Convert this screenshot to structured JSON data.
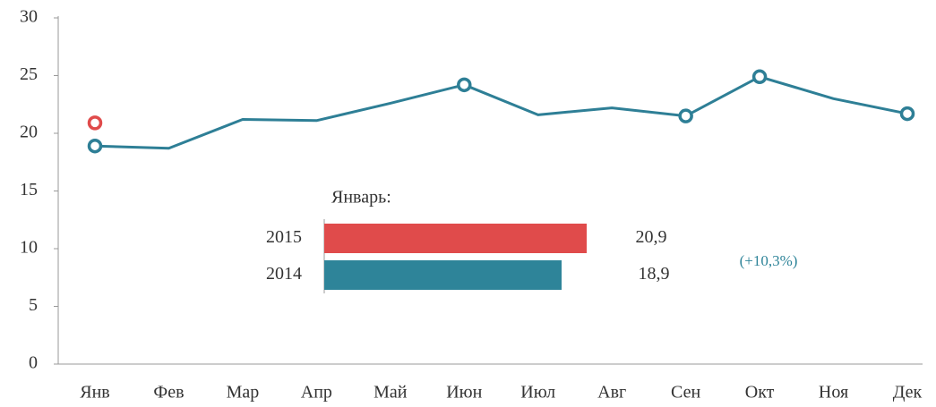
{
  "chart_data": [
    {
      "type": "line",
      "categories": [
        "Янв",
        "Фев",
        "Мар",
        "Апр",
        "Май",
        "Июн",
        "Июл",
        "Авг",
        "Сен",
        "Окт",
        "Ноя",
        "Дек"
      ],
      "series": [
        {
          "name": "2014",
          "color": "#2e7f96",
          "values": [
            18.9,
            18.7,
            21.2,
            21.1,
            22.6,
            24.2,
            21.6,
            22.2,
            21.5,
            24.9,
            23.0,
            21.7
          ],
          "markers": [
            0,
            5,
            8,
            9,
            11
          ]
        },
        {
          "name": "2015",
          "color": "#e04b4b",
          "values": [
            20.9,
            null,
            null,
            null,
            null,
            null,
            null,
            null,
            null,
            null,
            null,
            null
          ],
          "markers": [
            0
          ]
        }
      ],
      "ylim": [
        0,
        30
      ],
      "yticks": [
        0,
        5,
        10,
        15,
        20,
        25,
        30
      ],
      "grid": false
    },
    {
      "type": "hbar",
      "title": "Январь:",
      "categories": [
        "2015",
        "2014"
      ],
      "values": [
        20.9,
        18.9
      ],
      "value_labels": [
        "20,9",
        "18,9"
      ],
      "colors": [
        "#e04b4b",
        "#2e8499"
      ],
      "annotation": "(+10,3%)"
    }
  ]
}
